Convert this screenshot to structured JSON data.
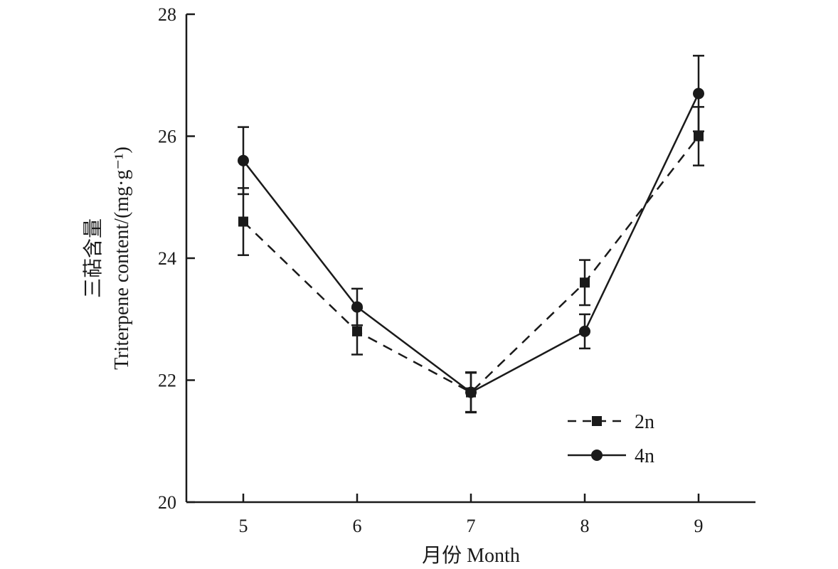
{
  "chart_data": {
    "type": "line",
    "x": [
      5,
      6,
      7,
      8,
      9
    ],
    "xlabel": "月份 Month",
    "ylabel_line1": "三萜含量",
    "ylabel_line2": "Triterpene content/(mg·g⁻¹)",
    "ylim": [
      20,
      28
    ],
    "yticks": [
      20,
      22,
      24,
      26,
      28
    ],
    "xticks": [
      5,
      6,
      7,
      8,
      9
    ],
    "grid": false,
    "legend": "lower-right",
    "series": [
      {
        "name": "2n",
        "style": "dashed",
        "marker": "square",
        "color": "#1a1a1a",
        "values": [
          24.6,
          22.8,
          21.8,
          23.6,
          26.0
        ],
        "errors": [
          0.55,
          0.38,
          0.32,
          0.37,
          0.48
        ]
      },
      {
        "name": "4n",
        "style": "solid",
        "marker": "circle",
        "color": "#1a1a1a",
        "values": [
          25.6,
          23.2,
          21.8,
          22.8,
          26.7
        ],
        "errors": [
          0.55,
          0.3,
          0.33,
          0.28,
          0.62
        ]
      }
    ]
  }
}
